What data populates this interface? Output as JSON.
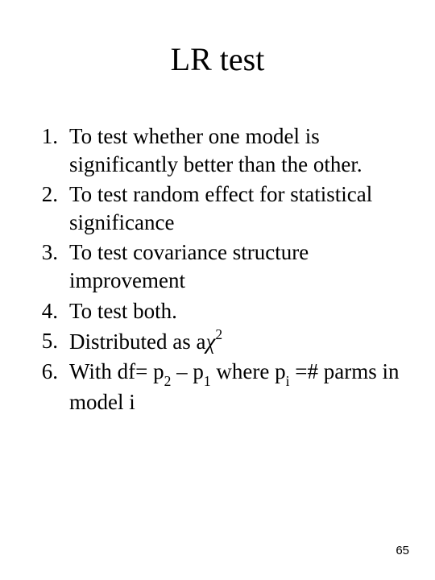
{
  "title": "LR test",
  "items": [
    {
      "n": "1.",
      "t": "To test whether one model is significantly better than the other."
    },
    {
      "n": "2.",
      "t": "To test random effect for statistical significance"
    },
    {
      "n": "3.",
      "t": "To test covariance structure improvement"
    },
    {
      "n": "4.",
      "t": "To test both."
    },
    {
      "n": "5.",
      "t": "Distributed as a"
    },
    {
      "n": "6.",
      "t_pre": "With df=  p",
      "t_mid": " – p",
      "t_post": "   where p",
      "t_end": " =# parms in model i"
    }
  ],
  "item5_chi": "χ",
  "item5_sup": "2",
  "sub2": "2",
  "sub1": "1",
  "subi": "i",
  "page": "65",
  "colors": {
    "bg": "#ffffff",
    "text": "#000000"
  },
  "fonts": {
    "title_size": 40,
    "body_size": 27,
    "page_size": 15
  }
}
